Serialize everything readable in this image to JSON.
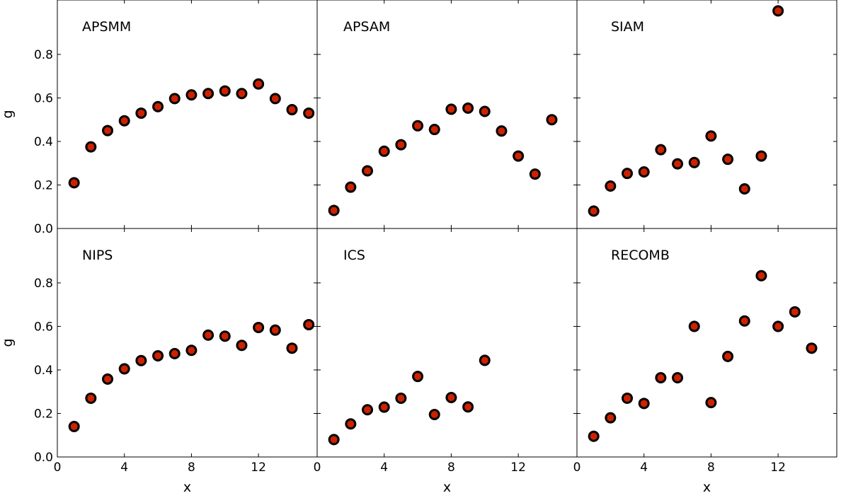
{
  "chart_data": {
    "type": "scatter",
    "layout": "2x3 grid, shared axes",
    "xlabel": "x",
    "ylabel": "g",
    "xlim": [
      0,
      15.5
    ],
    "ylim": [
      0,
      1.05
    ],
    "x_ticks": [
      0,
      4,
      8,
      12
    ],
    "y_ticks": [
      0.0,
      0.2,
      0.4,
      0.6,
      0.8
    ],
    "marker_color": "#cc2200",
    "marker_edge_color": "#000000",
    "grid": false,
    "panels": [
      {
        "title": "APSMM",
        "x": [
          1,
          2,
          3,
          4,
          5,
          6,
          7,
          8,
          9,
          10,
          11,
          12,
          13,
          14,
          15
        ],
        "y": [
          0.21,
          0.375,
          0.45,
          0.495,
          0.53,
          0.56,
          0.597,
          0.614,
          0.62,
          0.632,
          0.62,
          0.664,
          0.597,
          0.546,
          0.53
        ]
      },
      {
        "title": "APSAM",
        "x": [
          1,
          2,
          3,
          4,
          5,
          6,
          7,
          8,
          9,
          10,
          11,
          12,
          13,
          14
        ],
        "y": [
          0.083,
          0.19,
          0.265,
          0.355,
          0.385,
          0.472,
          0.455,
          0.548,
          0.553,
          0.538,
          0.448,
          0.333,
          0.25,
          0.5
        ]
      },
      {
        "title": "SIAM",
        "x": [
          1,
          2,
          3,
          4,
          5,
          6,
          7,
          8,
          9,
          10,
          11,
          12
        ],
        "y": [
          0.08,
          0.195,
          0.253,
          0.26,
          0.362,
          0.297,
          0.303,
          0.425,
          0.318,
          0.182,
          0.333,
          1.0
        ]
      },
      {
        "title": "NIPS",
        "x": [
          1,
          2,
          3,
          4,
          5,
          6,
          7,
          8,
          9,
          10,
          11,
          12,
          13,
          14,
          15
        ],
        "y": [
          0.14,
          0.27,
          0.358,
          0.405,
          0.443,
          0.465,
          0.475,
          0.49,
          0.56,
          0.555,
          0.513,
          0.595,
          0.583,
          0.5,
          0.608
        ]
      },
      {
        "title": "ICS",
        "x": [
          1,
          2,
          3,
          4,
          5,
          6,
          7,
          8,
          9,
          10
        ],
        "y": [
          0.08,
          0.152,
          0.217,
          0.229,
          0.27,
          0.37,
          0.195,
          0.273,
          0.23,
          0.444
        ]
      },
      {
        "title": "RECOMB",
        "x": [
          1,
          2,
          3,
          4,
          5,
          6,
          7,
          8,
          9,
          10,
          11,
          12,
          13,
          14
        ],
        "y": [
          0.095,
          0.18,
          0.27,
          0.246,
          0.364,
          0.364,
          0.6,
          0.25,
          0.462,
          0.625,
          0.833,
          0.6,
          0.667,
          0.5
        ]
      }
    ]
  }
}
